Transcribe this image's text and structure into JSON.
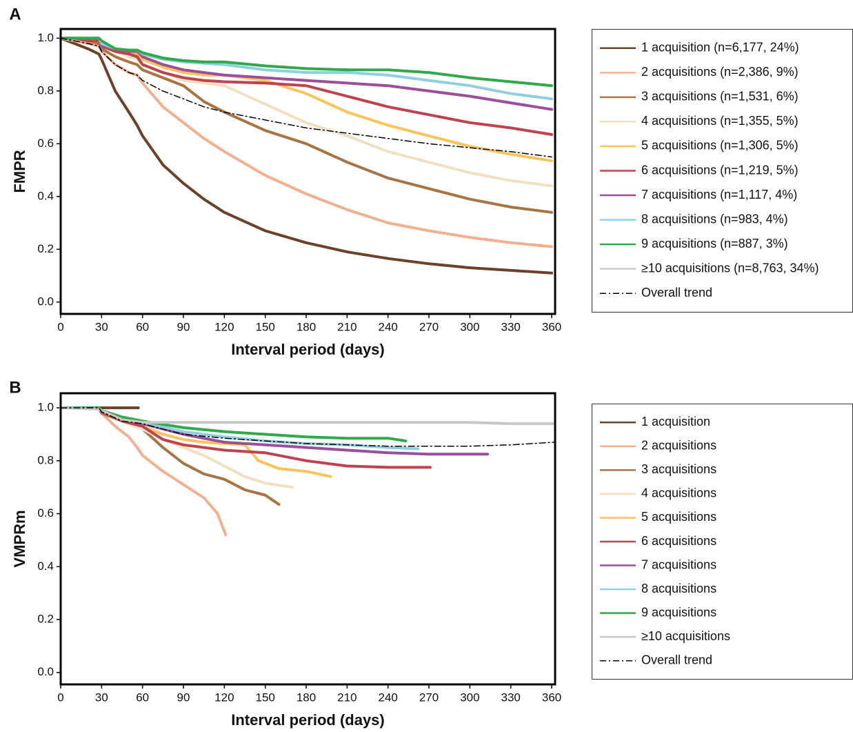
{
  "chart_data": [
    {
      "type": "line",
      "panel_label": "A",
      "ylabel": "FMPR",
      "xlabel": "Interval period (days)",
      "xlim": [
        0,
        362.5
      ],
      "ylim": [
        -0.045,
        1.035
      ],
      "xticks": [
        0,
        30,
        60,
        90,
        120,
        150,
        180,
        210,
        240,
        270,
        300,
        330,
        360
      ],
      "yticks": [
        {
          "value": 0,
          "label": "0.0"
        },
        0.2,
        0.4,
        0.6,
        0.8,
        {
          "value": 1,
          "label": "1.0"
        }
      ],
      "grid": false,
      "legend": "right",
      "x": [
        0,
        10,
        20,
        28,
        30,
        40,
        50,
        56,
        60,
        75,
        90,
        105,
        120,
        150,
        180,
        210,
        240,
        270,
        300,
        330,
        360
      ],
      "series": [
        {
          "name": "1 acquisition (n=6,177, 24%)",
          "color": "#6b4228",
          "values": [
            1,
            0.98,
            0.96,
            0.94,
            0.92,
            0.8,
            0.72,
            0.67,
            0.63,
            0.52,
            0.45,
            0.39,
            0.34,
            0.27,
            0.225,
            0.19,
            0.165,
            0.145,
            0.13,
            0.12,
            0.11
          ]
        },
        {
          "name": "2 acquisitions (n=2,386, 9%)",
          "color": "#f2b08e",
          "values": [
            1,
            0.99,
            0.98,
            0.97,
            0.95,
            0.9,
            0.87,
            0.86,
            0.83,
            0.74,
            0.68,
            0.62,
            0.57,
            0.48,
            0.41,
            0.35,
            0.3,
            0.27,
            0.245,
            0.225,
            0.21
          ]
        },
        {
          "name": "3 acquisitions (n=1,531, 6%)",
          "color": "#a87442",
          "values": [
            1,
            1,
            0.99,
            0.98,
            0.96,
            0.93,
            0.91,
            0.9,
            0.88,
            0.85,
            0.82,
            0.76,
            0.72,
            0.65,
            0.6,
            0.53,
            0.47,
            0.43,
            0.39,
            0.36,
            0.34
          ]
        },
        {
          "name": "4 acquisitions (n=1,355, 5%)",
          "color": "#f2dfbf",
          "values": [
            1,
            1,
            0.99,
            0.99,
            0.97,
            0.95,
            0.93,
            0.92,
            0.9,
            0.87,
            0.84,
            0.83,
            0.82,
            0.75,
            0.68,
            0.63,
            0.57,
            0.53,
            0.49,
            0.46,
            0.44
          ]
        },
        {
          "name": "5 acquisitions (n=1,306, 5%)",
          "color": "#fbc45a",
          "values": [
            1,
            1,
            0.99,
            0.99,
            0.97,
            0.95,
            0.94,
            0.94,
            0.92,
            0.89,
            0.87,
            0.86,
            0.86,
            0.84,
            0.79,
            0.72,
            0.67,
            0.63,
            0.59,
            0.56,
            0.535
          ]
        },
        {
          "name": "6 acquisitions (n=1,219, 5%)",
          "color": "#c0424f",
          "values": [
            1,
            1,
            0.99,
            0.99,
            0.97,
            0.95,
            0.94,
            0.93,
            0.9,
            0.87,
            0.85,
            0.84,
            0.835,
            0.83,
            0.82,
            0.78,
            0.74,
            0.71,
            0.68,
            0.66,
            0.635
          ]
        },
        {
          "name": "7 acquisitions (n=1,117, 4%)",
          "color": "#9b4f9b",
          "values": [
            1,
            1,
            1,
            1,
            0.97,
            0.96,
            0.95,
            0.95,
            0.93,
            0.9,
            0.88,
            0.87,
            0.86,
            0.85,
            0.84,
            0.83,
            0.82,
            0.8,
            0.78,
            0.755,
            0.73
          ]
        },
        {
          "name": "8 acquisitions (n=983, 4%)",
          "color": "#8fd0e0",
          "values": [
            1,
            1,
            1,
            1,
            0.98,
            0.96,
            0.955,
            0.955,
            0.94,
            0.92,
            0.91,
            0.905,
            0.9,
            0.88,
            0.87,
            0.87,
            0.86,
            0.84,
            0.82,
            0.79,
            0.77
          ]
        },
        {
          "name": "9 acquisitions (n=887, 3%)",
          "color": "#2eaa4a",
          "values": [
            1,
            1,
            1,
            1,
            0.99,
            0.96,
            0.955,
            0.955,
            0.945,
            0.925,
            0.915,
            0.91,
            0.91,
            0.895,
            0.885,
            0.88,
            0.88,
            0.87,
            0.85,
            0.835,
            0.82
          ]
        },
        {
          "name": "≥10 acquisitions (n=8,763, 34%)",
          "color": "#c8c8c8",
          "values": [
            null,
            null,
            null,
            null,
            null,
            null,
            null,
            null,
            null,
            null,
            null,
            null,
            null,
            null,
            null,
            null,
            null,
            null,
            null,
            null,
            null
          ]
        },
        {
          "name": "Overall trend",
          "color": "#000000",
          "linestyle": "dashdot",
          "values": [
            1,
            0.99,
            0.98,
            0.97,
            0.95,
            0.9,
            0.87,
            0.86,
            0.84,
            0.8,
            0.77,
            0.74,
            0.72,
            0.69,
            0.66,
            0.64,
            0.62,
            0.6,
            0.585,
            0.57,
            0.55
          ]
        }
      ]
    },
    {
      "type": "line",
      "panel_label": "B",
      "ylabel": "VMPRm",
      "xlabel": "Interval period (days)",
      "xlim": [
        0,
        362.5
      ],
      "ylim": [
        -0.045,
        1.055
      ],
      "xticks": [
        0,
        30,
        60,
        90,
        120,
        150,
        180,
        210,
        240,
        270,
        300,
        330,
        360
      ],
      "yticks": [
        {
          "value": 0,
          "label": "0.0"
        },
        0.2,
        0.4,
        0.6,
        0.8,
        {
          "value": 1,
          "label": "1.0"
        }
      ],
      "grid": false,
      "legend": "right",
      "series": [
        {
          "name": "1 acquisition",
          "color": "#6b4228",
          "x": [
            0,
            57
          ],
          "values": [
            1,
            1
          ]
        },
        {
          "name": "2 acquisitions",
          "color": "#f2b08e",
          "x": [
            0,
            28,
            30,
            40,
            50,
            56,
            60,
            75,
            90,
            105,
            115,
            121
          ],
          "values": [
            1,
            1,
            0.98,
            0.93,
            0.89,
            0.85,
            0.82,
            0.76,
            0.71,
            0.66,
            0.6,
            0.52
          ]
        },
        {
          "name": "3 acquisitions",
          "color": "#a87442",
          "x": [
            0,
            28,
            30,
            45,
            60,
            75,
            90,
            105,
            120,
            135,
            150,
            160
          ],
          "values": [
            1,
            1,
            0.98,
            0.95,
            0.92,
            0.85,
            0.79,
            0.75,
            0.73,
            0.69,
            0.67,
            0.635
          ]
        },
        {
          "name": "4 acquisitions",
          "color": "#f2dfbf",
          "x": [
            0,
            28,
            30,
            45,
            60,
            75,
            90,
            105,
            120,
            135,
            150,
            170
          ],
          "values": [
            1,
            1,
            0.985,
            0.95,
            0.92,
            0.88,
            0.85,
            0.82,
            0.78,
            0.74,
            0.715,
            0.7
          ]
        },
        {
          "name": "5 acquisitions",
          "color": "#fbc45a",
          "x": [
            0,
            28,
            30,
            45,
            60,
            75,
            90,
            105,
            120,
            135,
            145,
            160,
            180,
            198
          ],
          "values": [
            1,
            1,
            0.985,
            0.955,
            0.93,
            0.9,
            0.88,
            0.87,
            0.865,
            0.86,
            0.8,
            0.77,
            0.76,
            0.74
          ]
        },
        {
          "name": "6 acquisitions",
          "color": "#c0424f",
          "x": [
            0,
            28,
            30,
            45,
            60,
            75,
            90,
            120,
            150,
            180,
            210,
            240,
            271
          ],
          "values": [
            1,
            1,
            0.985,
            0.95,
            0.93,
            0.88,
            0.86,
            0.84,
            0.83,
            0.8,
            0.78,
            0.775,
            0.775
          ]
        },
        {
          "name": "7 acquisitions",
          "color": "#9b4f9b",
          "x": [
            0,
            28,
            30,
            45,
            60,
            90,
            120,
            150,
            180,
            210,
            240,
            270,
            313
          ],
          "values": [
            1,
            1,
            0.99,
            0.96,
            0.94,
            0.9,
            0.87,
            0.86,
            0.85,
            0.84,
            0.83,
            0.825,
            0.825
          ]
        },
        {
          "name": "8 acquisitions",
          "color": "#8fd0e0",
          "x": [
            0,
            28,
            30,
            45,
            60,
            90,
            120,
            150,
            180,
            210,
            240,
            262
          ],
          "values": [
            1,
            1,
            0.99,
            0.96,
            0.945,
            0.91,
            0.89,
            0.875,
            0.865,
            0.86,
            0.85,
            0.845
          ]
        },
        {
          "name": "9 acquisitions",
          "color": "#2eaa4a",
          "x": [
            0,
            28,
            30,
            45,
            60,
            90,
            120,
            150,
            180,
            210,
            240,
            253
          ],
          "values": [
            1,
            1,
            0.99,
            0.965,
            0.95,
            0.925,
            0.91,
            0.9,
            0.89,
            0.885,
            0.885,
            0.875
          ]
        },
        {
          "name": "≥10 acquisitions",
          "color": "#c8c8c8",
          "x": [
            0,
            28,
            30,
            45,
            60,
            90,
            120,
            150,
            180,
            210,
            240,
            270,
            300,
            330,
            362
          ],
          "values": [
            1,
            0.995,
            0.99,
            0.955,
            0.945,
            0.945,
            0.945,
            0.945,
            0.945,
            0.945,
            0.945,
            0.945,
            0.945,
            0.94,
            0.94
          ]
        },
        {
          "name": "Overall trend",
          "color": "#000000",
          "linestyle": "dashdot",
          "x": [
            0,
            28,
            30,
            45,
            60,
            90,
            120,
            150,
            180,
            210,
            240,
            270,
            300,
            330,
            362
          ],
          "values": [
            1,
            1,
            0.985,
            0.95,
            0.94,
            0.9,
            0.885,
            0.875,
            0.865,
            0.86,
            0.855,
            0.855,
            0.855,
            0.86,
            0.87
          ]
        }
      ]
    }
  ]
}
